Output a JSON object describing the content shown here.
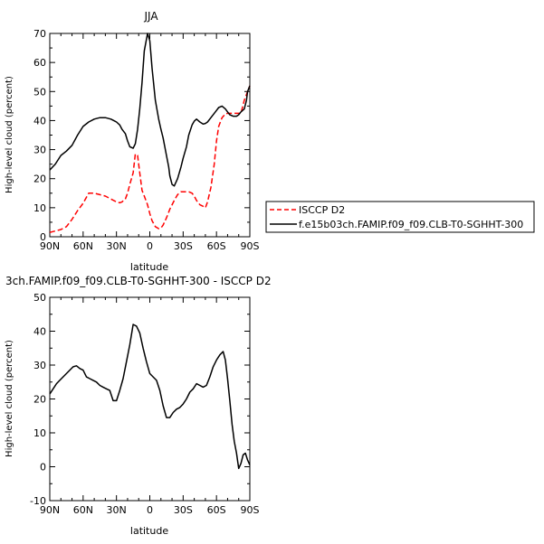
{
  "chart_data": [
    {
      "type": "line",
      "title": "JJA",
      "xlabel": "latitude",
      "ylabel": "High-level cloud (percent)",
      "x": [
        -90,
        -85,
        -80,
        -75,
        -70,
        -65,
        -60,
        -55,
        -50,
        -45,
        -40,
        -35,
        -30,
        -27,
        -25,
        -22,
        -20,
        -18,
        -15,
        -13,
        -11,
        -9,
        -7,
        -5,
        -2,
        0,
        2,
        5,
        8,
        10,
        12,
        15,
        17,
        18,
        20,
        22,
        25,
        28,
        30,
        33,
        35,
        38,
        40,
        42,
        45,
        48,
        50,
        52,
        55,
        58,
        60,
        62,
        65,
        68,
        70,
        72,
        75,
        78,
        80,
        82,
        85,
        87,
        88,
        90
      ],
      "xlim": [
        -90,
        90
      ],
      "xticks": [
        -90,
        -60,
        -30,
        0,
        30,
        60,
        90
      ],
      "xticklabels": [
        "90N",
        "60N",
        "30N",
        "0",
        "30S",
        "60S",
        "90S"
      ],
      "ylim": [
        0,
        70
      ],
      "yticks": [
        0,
        10,
        20,
        30,
        40,
        50,
        60,
        70
      ],
      "yticklabels": [
        "0",
        "10",
        "20",
        "30",
        "40",
        "50",
        "60",
        "70"
      ],
      "legend": {
        "placement": "right-outside",
        "entries": [
          "ISCCP D2",
          "f.e15b03ch.FAMIP.f09_f09.CLB-T0-SGHHT-300"
        ]
      },
      "series": [
        {
          "name": "ISCCP D2",
          "color": "#ff0000",
          "dash": "dashed",
          "values": [
            1.5,
            2,
            2.5,
            3.5,
            6,
            9,
            11.5,
            15,
            15,
            14.5,
            14,
            13,
            12,
            11.7,
            12,
            13,
            15,
            18,
            22,
            28.5,
            28,
            22,
            16,
            14,
            11,
            8,
            5.5,
            3.5,
            2.8,
            3,
            4,
            6.5,
            8.5,
            9.5,
            11,
            12.5,
            14.5,
            15.5,
            15.5,
            15.5,
            15.5,
            15,
            14,
            12.5,
            11,
            10.5,
            10,
            12,
            17,
            25,
            33,
            38,
            41,
            42.3,
            42.5,
            42.5,
            42.5,
            42.5,
            42.5,
            42.5,
            47,
            49,
            50,
            52
          ]
        },
        {
          "name": "f.e15b03ch.FAMIP.f09_f09.CLB-T0-SGHHT-300",
          "color": "#000000",
          "dash": "solid",
          "values": [
            23,
            25,
            28,
            29.5,
            31.5,
            35,
            38,
            39.5,
            40.5,
            41,
            41,
            40.5,
            39.5,
            38.5,
            37,
            35.5,
            33,
            31,
            30.5,
            32,
            37,
            44,
            53,
            64,
            70,
            67.5,
            58,
            47,
            40.5,
            37,
            34,
            28,
            24,
            21,
            18,
            17.5,
            20,
            24,
            27,
            31,
            35,
            38.5,
            39.8,
            40.5,
            39.5,
            38.8,
            39,
            39.5,
            41,
            42.5,
            43.5,
            44.5,
            45,
            44,
            43,
            42,
            41.5,
            41.5,
            42,
            43,
            44,
            47,
            50,
            52
          ]
        }
      ]
    },
    {
      "type": "line",
      "title": "3ch.FAMIP.f09_f09.CLB-T0-SGHHT-300 - ISCCP D2",
      "xlabel": "latitude",
      "ylabel": "High-level cloud (percent)",
      "x": [
        -90,
        -87,
        -84,
        -81,
        -78,
        -75,
        -72,
        -69,
        -66,
        -63,
        -60,
        -57,
        -54,
        -51,
        -48,
        -45,
        -42,
        -39,
        -36,
        -33,
        -30,
        -27,
        -24,
        -21,
        -18,
        -15,
        -12,
        -9,
        -6,
        -3,
        0,
        3,
        6,
        9,
        12,
        15,
        18,
        21,
        24,
        27,
        30,
        33,
        36,
        39,
        42,
        45,
        48,
        51,
        54,
        57,
        60,
        63,
        66,
        68,
        70,
        72,
        74,
        76,
        78,
        80,
        82,
        84,
        86,
        88,
        90
      ],
      "xlim": [
        -90,
        90
      ],
      "xticks": [
        -90,
        -60,
        -30,
        0,
        30,
        60,
        90
      ],
      "xticklabels": [
        "90N",
        "60N",
        "30N",
        "0",
        "30S",
        "60S",
        "90S"
      ],
      "ylim": [
        -10,
        50
      ],
      "yticks": [
        -10,
        0,
        10,
        20,
        30,
        40,
        50
      ],
      "yticklabels": [
        "-10",
        "0",
        "10",
        "20",
        "30",
        "40",
        "50"
      ],
      "series": [
        {
          "color": "#000000",
          "dash": "solid",
          "values": [
            21.5,
            23,
            24.5,
            25.5,
            26.5,
            27.5,
            28.5,
            29.5,
            29.8,
            29,
            28.5,
            26.5,
            26,
            25.5,
            25,
            24,
            23.5,
            23,
            22.5,
            19.5,
            19.5,
            22.5,
            26,
            31,
            36,
            42,
            41.5,
            39.5,
            35,
            31,
            27.5,
            26.5,
            25.5,
            22.5,
            18,
            14.5,
            14.5,
            16,
            17,
            17.5,
            18.5,
            20,
            22,
            23,
            24.5,
            24,
            23.5,
            24,
            26.5,
            29.5,
            31.5,
            33,
            34,
            31.5,
            26,
            19.5,
            12.5,
            7.5,
            4,
            -0.5,
            1,
            3.5,
            4,
            2,
            0.5
          ]
        }
      ]
    }
  ]
}
